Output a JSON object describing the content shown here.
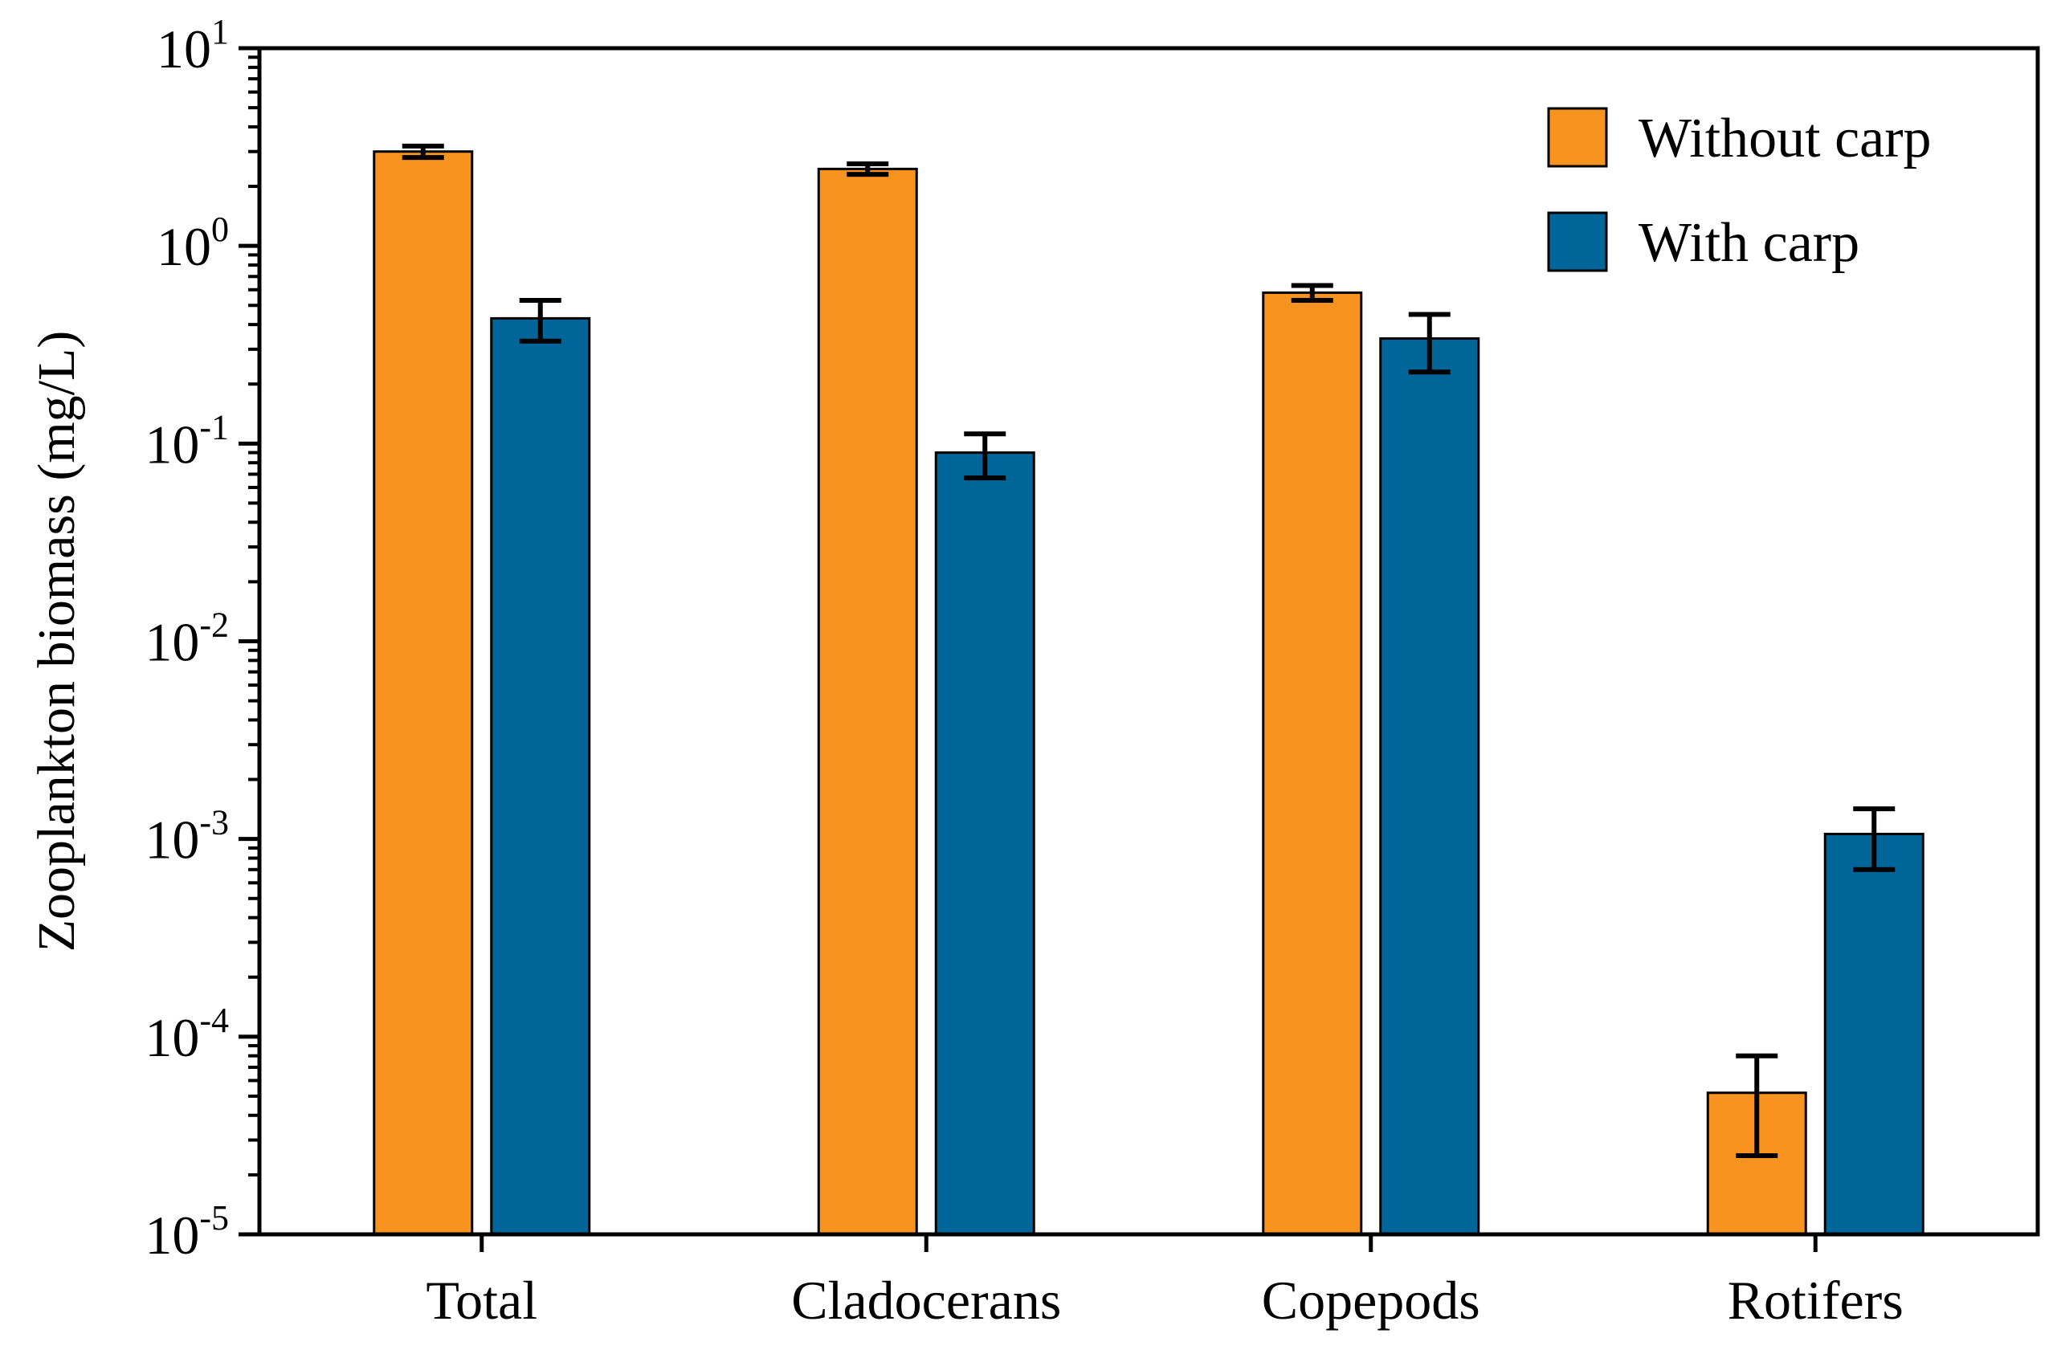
{
  "chart_data": {
    "type": "bar",
    "title": "",
    "xlabel": "",
    "ylabel": "Zooplankton biomass (mg/L)",
    "yscale": "log",
    "ylim": [
      1e-05,
      10
    ],
    "y_ticks": [
      {
        "value": 1e-05,
        "base": "10",
        "exp": "-5"
      },
      {
        "value": 0.0001,
        "base": "10",
        "exp": "-4"
      },
      {
        "value": 0.001,
        "base": "10",
        "exp": "-3"
      },
      {
        "value": 0.01,
        "base": "10",
        "exp": "-2"
      },
      {
        "value": 0.1,
        "base": "10",
        "exp": "-1"
      },
      {
        "value": 1,
        "base": "10",
        "exp": "0"
      },
      {
        "value": 10,
        "base": "10",
        "exp": "1"
      }
    ],
    "categories": [
      "Total",
      "Cladocerans",
      "Copepods",
      "Rotifers"
    ],
    "series": [
      {
        "name": "Without carp",
        "color": "#F7931E",
        "values": [
          3.0,
          2.45,
          0.58,
          5.2e-05
        ],
        "err_low": [
          2.8,
          2.3,
          0.53,
          2.5e-05
        ],
        "err_high": [
          3.2,
          2.6,
          0.63,
          8e-05
        ]
      },
      {
        "name": "With carp",
        "color": "#006699",
        "values": [
          0.43,
          0.09,
          0.34,
          0.00106
        ],
        "err_low": [
          0.33,
          0.067,
          0.23,
          0.0007
        ],
        "err_high": [
          0.53,
          0.112,
          0.45,
          0.00142
        ]
      }
    ],
    "legend_position": "top-right",
    "grid": false
  }
}
